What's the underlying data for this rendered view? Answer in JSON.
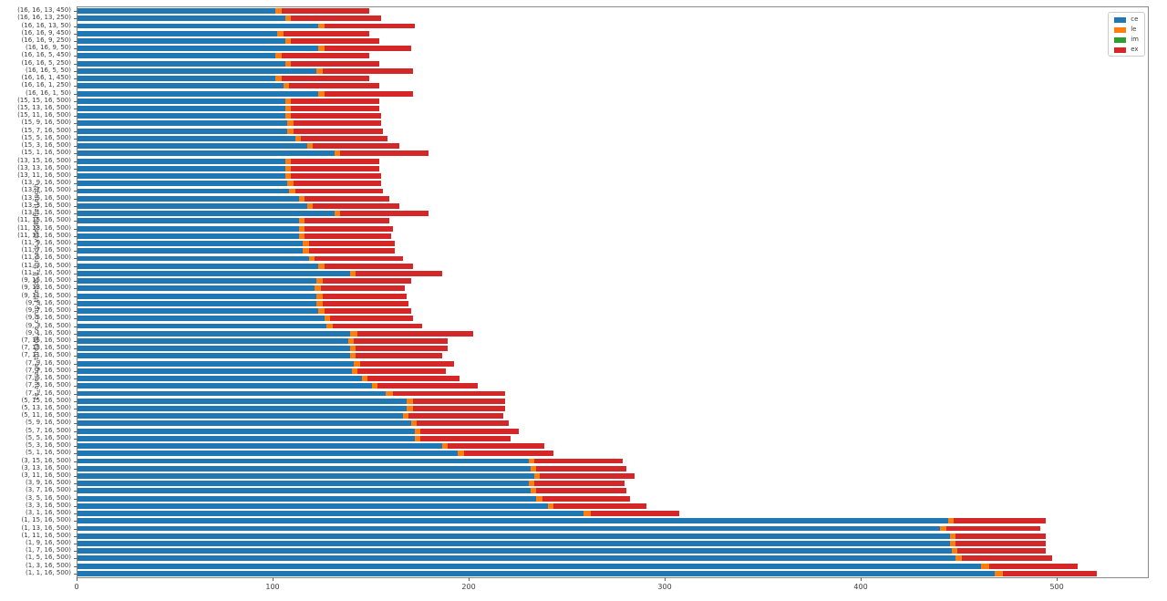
{
  "chart_data": {
    "type": "bar",
    "orientation": "horizontal",
    "stacked": true,
    "title": "",
    "xlabel": "",
    "ylabel": "ce_average_threads,ce_comp_threads,lf_threads,videoBufferLength",
    "grid": false,
    "legend_position": "upper right",
    "xticks": [
      0,
      100,
      200,
      300,
      400,
      500
    ],
    "xlim": [
      0,
      546
    ],
    "categories": [
      "(16, 16, 13, 450)",
      "(16, 16, 13, 250)",
      "(16, 16, 13, 50)",
      "(16, 16, 9, 450)",
      "(16, 16, 9, 250)",
      "(16, 16, 9, 50)",
      "(16, 16, 5, 450)",
      "(16, 16, 5, 250)",
      "(16, 16, 5, 50)",
      "(16, 16, 1, 450)",
      "(16, 16, 1, 250)",
      "(16, 16, 1, 50)",
      "(15, 15, 16, 500)",
      "(15, 13, 16, 500)",
      "(15, 11, 16, 500)",
      "(15, 9, 16, 500)",
      "(15, 7, 16, 500)",
      "(15, 5, 16, 500)",
      "(15, 3, 16, 500)",
      "(15, 1, 16, 500)",
      "(13, 15, 16, 500)",
      "(13, 13, 16, 500)",
      "(13, 11, 16, 500)",
      "(13, 9, 16, 500)",
      "(13, 7, 16, 500)",
      "(13, 5, 16, 500)",
      "(13, 3, 16, 500)",
      "(13, 1, 16, 500)",
      "(11, 15, 16, 500)",
      "(11, 13, 16, 500)",
      "(11, 11, 16, 500)",
      "(11, 9, 16, 500)",
      "(11, 7, 16, 500)",
      "(11, 5, 16, 500)",
      "(11, 3, 16, 500)",
      "(11, 1, 16, 500)",
      "(9, 15, 16, 500)",
      "(9, 13, 16, 500)",
      "(9, 11, 16, 500)",
      "(9, 9, 16, 500)",
      "(9, 7, 16, 500)",
      "(9, 5, 16, 500)",
      "(9, 3, 16, 500)",
      "(9, 1, 16, 500)",
      "(7, 15, 16, 500)",
      "(7, 13, 16, 500)",
      "(7, 11, 16, 500)",
      "(7, 9, 16, 500)",
      "(7, 7, 16, 500)",
      "(7, 5, 16, 500)",
      "(7, 3, 16, 500)",
      "(7, 1, 16, 500)",
      "(5, 15, 16, 500)",
      "(5, 13, 16, 500)",
      "(5, 11, 16, 500)",
      "(5, 9, 16, 500)",
      "(5, 7, 16, 500)",
      "(5, 5, 16, 500)",
      "(5, 3, 16, 500)",
      "(5, 1, 16, 500)",
      "(3, 15, 16, 500)",
      "(3, 13, 16, 500)",
      "(3, 11, 16, 500)",
      "(3, 9, 16, 500)",
      "(3, 7, 16, 500)",
      "(3, 5, 16, 500)",
      "(3, 3, 16, 500)",
      "(3, 1, 16, 500)",
      "(1, 15, 16, 500)",
      "(1, 13, 16, 500)",
      "(1, 11, 16, 500)",
      "(1, 9, 16, 500)",
      "(1, 7, 16, 500)",
      "(1, 5, 16, 500)",
      "(1, 3, 16, 500)",
      "(1, 1, 16, 500)"
    ],
    "series": [
      {
        "name": "ce",
        "color": "#1f77b4",
        "values": [
          101,
          106,
          123,
          102,
          106,
          123,
          101,
          106,
          122,
          101,
          105,
          123,
          106,
          106,
          106,
          107,
          107,
          111,
          117,
          131,
          106,
          106,
          106,
          107,
          108,
          113,
          117,
          131,
          113,
          113,
          113,
          115,
          115,
          118,
          123,
          139,
          122,
          121,
          122,
          122,
          123,
          126,
          127,
          139,
          138,
          139,
          139,
          141,
          140,
          145,
          150,
          157,
          168,
          168,
          166,
          170,
          172,
          172,
          186,
          194,
          230,
          231,
          233,
          230,
          231,
          234,
          240,
          258,
          444,
          440,
          445,
          445,
          446,
          448,
          461,
          468
        ]
      },
      {
        "name": "le",
        "color": "#ff7f0e",
        "values": [
          3,
          3,
          3,
          3,
          3,
          3,
          3,
          3,
          3,
          3,
          3,
          3,
          3,
          3,
          3,
          3,
          3,
          3,
          3,
          3,
          3,
          3,
          3,
          3,
          3,
          3,
          3,
          3,
          3,
          3,
          3,
          3,
          3,
          3,
          3,
          3,
          3,
          3,
          3,
          3,
          3,
          3,
          3,
          4,
          3,
          3,
          3,
          3,
          3,
          3,
          3,
          4,
          3,
          3,
          3,
          3,
          3,
          3,
          3,
          3,
          3,
          3,
          3,
          3,
          3,
          3,
          3,
          4,
          3,
          3,
          3,
          3,
          3,
          3,
          4,
          4
        ]
      },
      {
        "name": "im",
        "color": "#2ca02c",
        "values": [
          0,
          0,
          0,
          0,
          0,
          0,
          0,
          0,
          0,
          0,
          0,
          0,
          0,
          0,
          0,
          0,
          0,
          0,
          0,
          0,
          0,
          0,
          0,
          0,
          0,
          0,
          0,
          0,
          0,
          0,
          0,
          0,
          0,
          0,
          0,
          0,
          0,
          0,
          0,
          0,
          0,
          0,
          0,
          0,
          0,
          0,
          0,
          0,
          0,
          0,
          0,
          0,
          0,
          0,
          0,
          0,
          0,
          0,
          0,
          0,
          0,
          0,
          0,
          0,
          0,
          0,
          0,
          0,
          0,
          0,
          0,
          0,
          0,
          0,
          0,
          0
        ]
      },
      {
        "name": "ex",
        "color": "#d62728",
        "values": [
          45,
          46,
          46,
          44,
          45,
          44,
          45,
          45,
          46,
          45,
          46,
          45,
          45,
          45,
          46,
          45,
          46,
          44,
          44,
          45,
          45,
          45,
          46,
          45,
          45,
          43,
          44,
          45,
          43,
          45,
          44,
          44,
          44,
          45,
          45,
          44,
          45,
          43,
          43,
          44,
          44,
          42,
          46,
          59,
          48,
          47,
          44,
          48,
          45,
          47,
          51,
          57,
          47,
          47,
          48,
          47,
          50,
          46,
          49,
          46,
          45,
          46,
          48,
          46,
          46,
          45,
          47,
          45,
          47,
          48,
          46,
          46,
          45,
          46,
          45,
          48
        ]
      }
    ]
  },
  "legend": {
    "items": [
      {
        "label": "ce",
        "color": "#1f77b4"
      },
      {
        "label": "le",
        "color": "#ff7f0e"
      },
      {
        "label": "im",
        "color": "#2ca02c"
      },
      {
        "label": "ex",
        "color": "#d62728"
      }
    ]
  }
}
